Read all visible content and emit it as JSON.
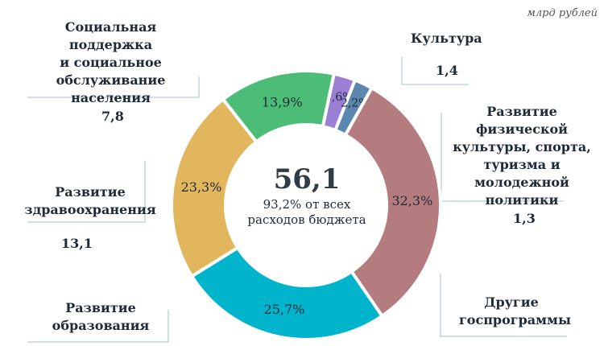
{
  "unit": "млрд рублей",
  "center": {
    "value": "56,1",
    "subtitle_line1": "93,2% от всех",
    "subtitle_line2": "расходов бюджета"
  },
  "colors": {
    "culture": "#9b7fd4",
    "sport": "#5b86ad",
    "other": "#b57c7f",
    "education": "#00b4cc",
    "health": "#e2b65c",
    "social": "#4cbd76",
    "leader": "#9cc3d3"
  },
  "labels": {
    "social": [
      "Социальная поддержка",
      "и социальное",
      "обслуживание",
      "населения"
    ],
    "culture": [
      "Культура"
    ],
    "sport": [
      "Развитие физической",
      "культуры, спорта,",
      "туризма и",
      "молодежной",
      "политики"
    ],
    "health": [
      "Развитие",
      "здравоохранения"
    ],
    "education": [
      "Развитие",
      "образования"
    ],
    "other": [
      "Другие",
      "госпрограммы"
    ]
  },
  "values_text": {
    "social": "7,8",
    "culture": "1,4",
    "sport": "1,3",
    "health": "13,1",
    "other": ""
  },
  "chart_data": {
    "type": "pie",
    "donut": true,
    "center_value": "56,1",
    "center_label": "93,2% от всех расходов бюджета",
    "categories": [
      "Культура",
      "Развитие физической культуры, спорта, туризма и молодежной политики",
      "Другие госпрограммы",
      "Развитие образования",
      "Развитие здравоохранения",
      "Социальная поддержка и социальное обслуживание населения"
    ],
    "values": [
      1.4,
      1.3,
      null,
      null,
      13.1,
      7.8
    ],
    "percent_labels": [
      "2,6%",
      "2,2%",
      "32,3%",
      "25,7%",
      "23,3%",
      "13,9%"
    ],
    "percents": [
      2.6,
      2.2,
      32.3,
      25.7,
      23.3,
      13.9
    ],
    "unit": "млрд рублей"
  }
}
